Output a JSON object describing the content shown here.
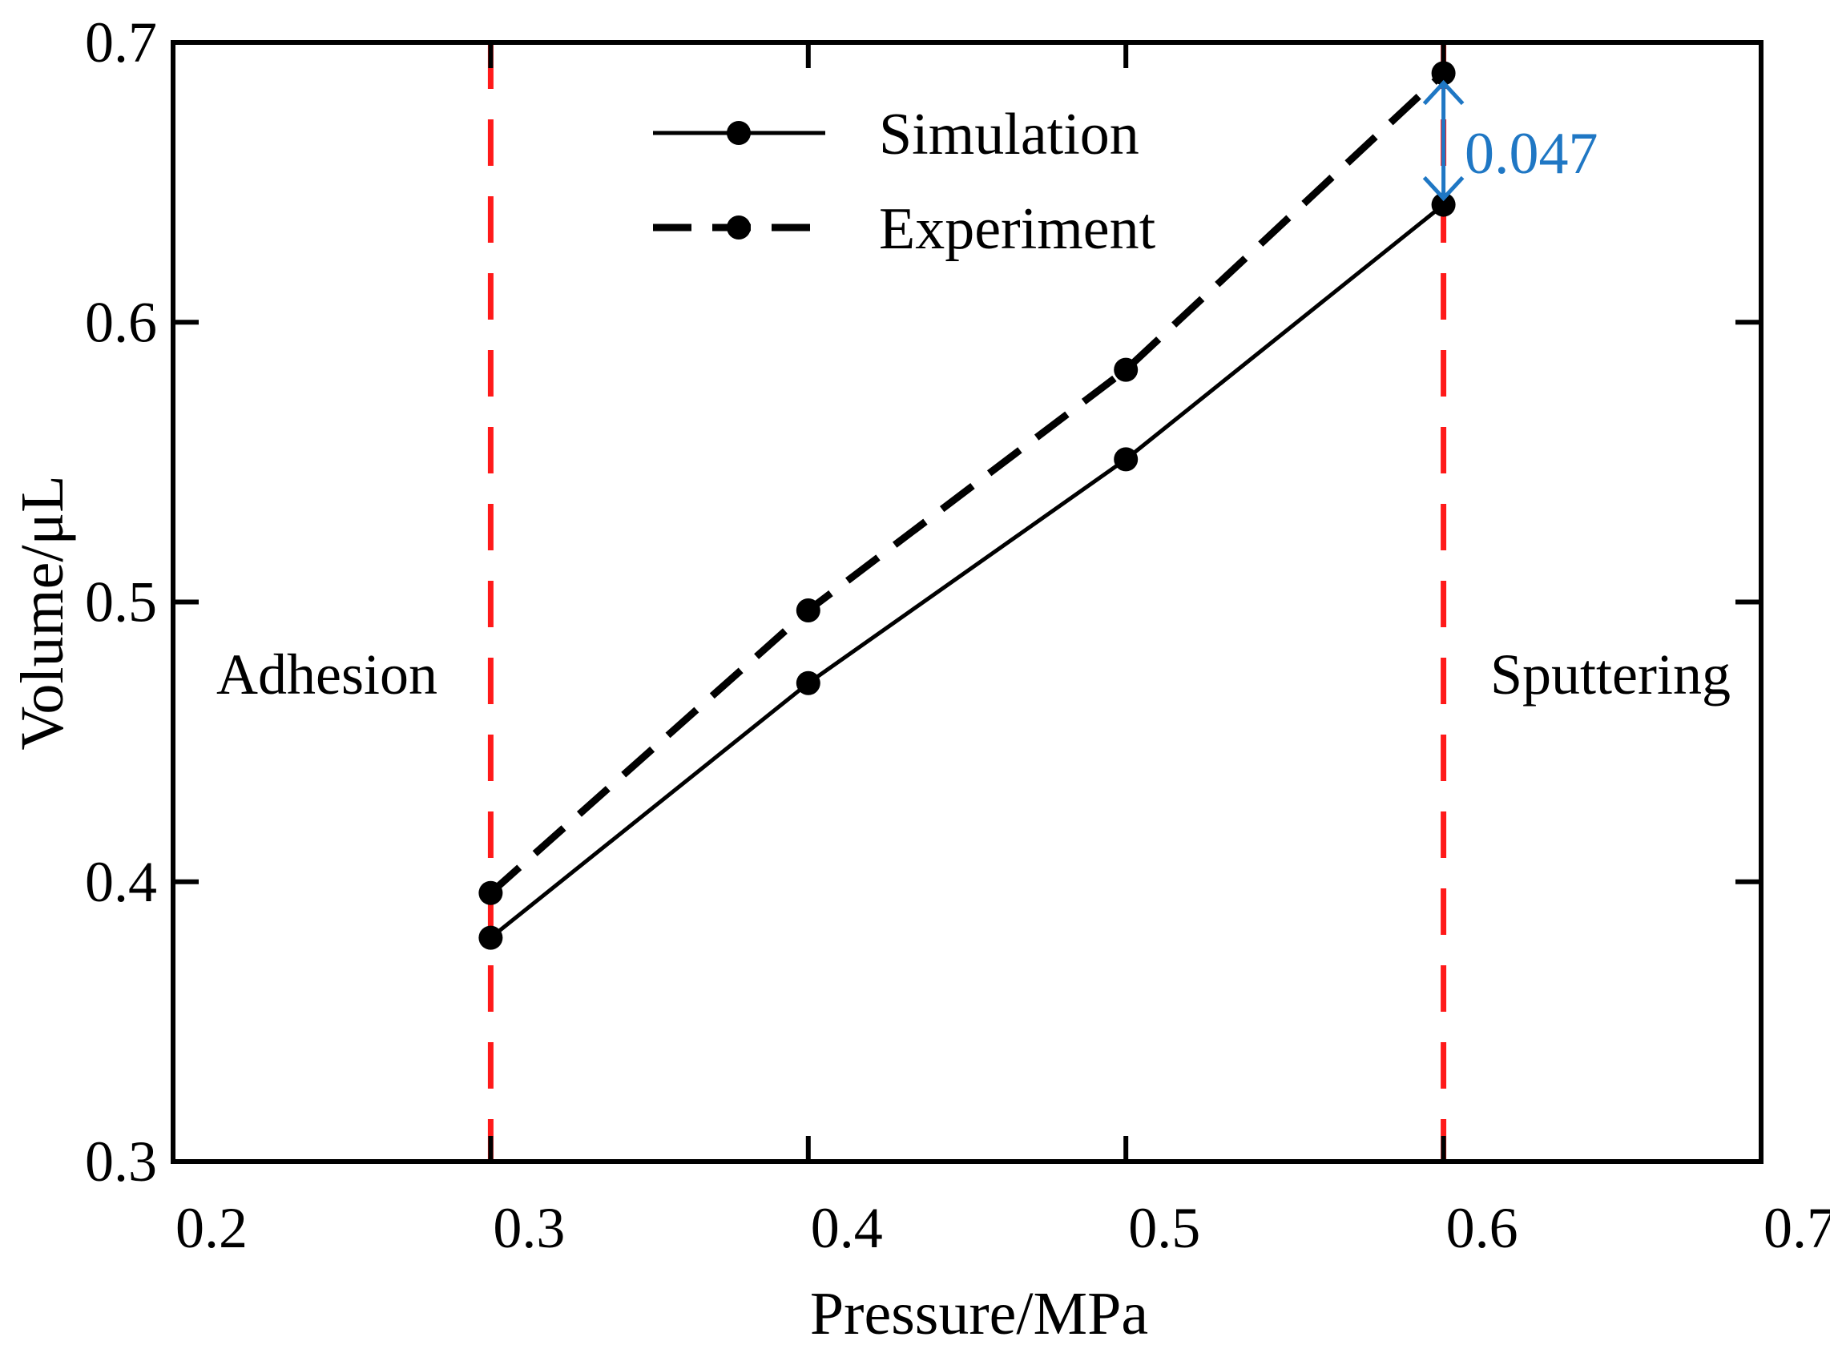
{
  "chart_data": {
    "type": "line",
    "xlabel": "Pressure/MPa",
    "ylabel": "Volume/μL",
    "xlim": [
      0.2,
      0.7
    ],
    "ylim": [
      0.3,
      0.7
    ],
    "xticks": [
      0.2,
      0.3,
      0.4,
      0.5,
      0.6,
      0.7
    ],
    "yticks": [
      0.3,
      0.4,
      0.5,
      0.6,
      0.7
    ],
    "xtick_labels": [
      "0.2",
      "0.3",
      "0.4",
      "0.5",
      "0.6",
      "0.7"
    ],
    "ytick_labels": [
      "0.3",
      "0.4",
      "0.5",
      "0.6",
      "0.7"
    ],
    "grid": false,
    "legend_position": "top-center",
    "series": [
      {
        "name": "Simulation",
        "style": "solid",
        "x": [
          0.3,
          0.4,
          0.5,
          0.6
        ],
        "y": [
          0.38,
          0.471,
          0.551,
          0.642
        ]
      },
      {
        "name": "Experiment",
        "style": "dashed",
        "x": [
          0.3,
          0.4,
          0.5,
          0.6
        ],
        "y": [
          0.396,
          0.497,
          0.583,
          0.689
        ]
      }
    ],
    "reference_lines": [
      {
        "x": 0.3,
        "color": "#ff1a1a",
        "style": "dashed",
        "label": "Adhesion",
        "label_side": "left"
      },
      {
        "x": 0.6,
        "color": "#ff1a1a",
        "style": "dashed",
        "label": "Sputtering",
        "label_side": "right"
      }
    ],
    "annotation": {
      "text": "0.047",
      "x": 0.6,
      "y_from": 0.642,
      "y_to": 0.689,
      "color": "#1f77c4"
    }
  }
}
